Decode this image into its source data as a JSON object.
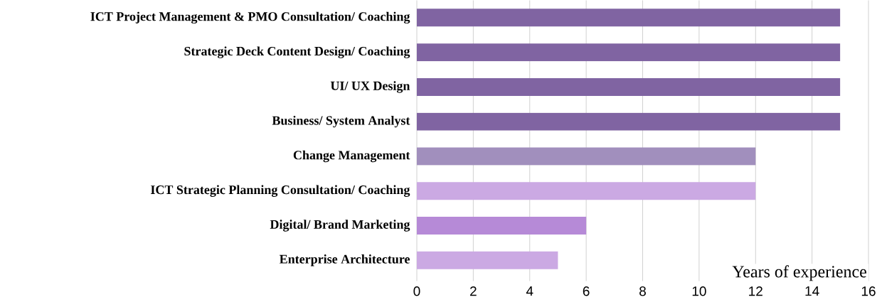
{
  "chart_data": {
    "type": "bar",
    "orientation": "horizontal",
    "xlabel": "Years of experience",
    "categories": [
      "ICT Project Management & PMO Consultation/ Coaching",
      "Strategic Deck Content Design/ Coaching",
      "UI/ UX Design",
      "Business/ System Analyst",
      "Change Management",
      "ICT Strategic Planning Consultation/ Coaching",
      "Digital/ Brand Marketing",
      "Enterprise Architecture"
    ],
    "values": [
      15,
      15,
      15,
      15,
      12,
      12,
      6,
      5
    ],
    "colors": [
      "#8064a2",
      "#8064a2",
      "#8064a2",
      "#8064a2",
      "#a18fbd",
      "#cba9e3",
      "#b68ad7",
      "#cba9e3"
    ],
    "xlim": [
      0,
      16
    ],
    "xticks": [
      0,
      2,
      4,
      6,
      8,
      10,
      12,
      14,
      16
    ],
    "grid": "x"
  }
}
